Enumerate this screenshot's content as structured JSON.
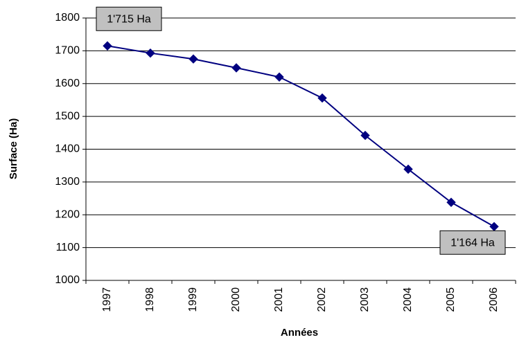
{
  "chart_data": {
    "type": "line",
    "x_label": "Années",
    "y_label": "Surface (Ha)",
    "categories": [
      "1997",
      "1998",
      "1999",
      "2000",
      "2001",
      "2002",
      "2003",
      "2004",
      "2005",
      "2006"
    ],
    "series": [
      {
        "name": "Surface",
        "color": "#000080",
        "values": [
          1715,
          1693,
          1675,
          1648,
          1620,
          1556,
          1442,
          1339,
          1238,
          1164
        ],
        "value_labels": [
          "1'715 Ha",
          null,
          null,
          null,
          null,
          null,
          null,
          null,
          null,
          "1'164 Ha"
        ]
      }
    ],
    "ylim": [
      1000,
      1800
    ],
    "yticks": [
      1000,
      1100,
      1200,
      1300,
      1400,
      1500,
      1600,
      1700,
      1800
    ],
    "grid": true
  }
}
